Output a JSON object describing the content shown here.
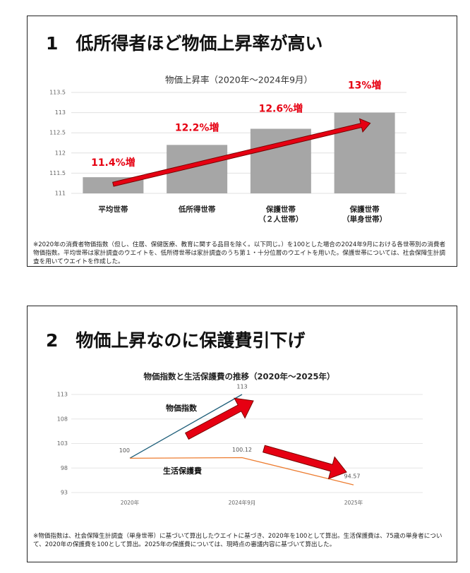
{
  "chart_data": [
    {
      "type": "bar",
      "heading": "1　低所得者ほど物価上昇率が高い",
      "title": "物価上昇率（2020年～2024年9月）",
      "categories": [
        "平均世帯",
        "低所得世帯",
        "保護世帯\n（２人世帯）",
        "保護世帯\n（単身世帯）"
      ],
      "values": [
        111.4,
        112.2,
        112.6,
        113
      ],
      "color": "#a6a6a6",
      "annotations": [
        "11.4%増",
        "12.2%増",
        "12.6%増",
        "13%増"
      ],
      "annotation_color": "#e60012",
      "ylim": [
        111,
        113.5
      ],
      "yticks": [
        111,
        111.5,
        112,
        112.5,
        113,
        113.5
      ],
      "grid": true,
      "note": "※2020年の消費者物価指数（但し、住居、保健医療、教育に関する品目を除く。以下同じ。）を100とした場合の2024年9月における各世帯別の消費者物価指数。平均世帯は家計調査のウエイトを、低所得世帯は家計調査のうち第１・十分位層のウエイトを用いた。保護世帯については、社会保障生計調査を用いてウエイトを作成した。"
    },
    {
      "type": "line",
      "heading": "2　物価上昇なのに保護費引下げ",
      "title": "物価指数と生活保護費の推移（2020年～2025年）",
      "categories": [
        "2020年",
        "2024年9月",
        "2025年"
      ],
      "series": [
        {
          "name": "物価指数",
          "color": "#1f5f7a",
          "values": [
            100,
            113,
            null
          ],
          "value_labels": [
            "100",
            "113",
            null
          ]
        },
        {
          "name": "生活保護費",
          "color": "#ed7d31",
          "values": [
            100,
            100.12,
            94.57
          ],
          "value_labels": [
            null,
            "100.12",
            "94.57"
          ]
        }
      ],
      "ylim": [
        93,
        113
      ],
      "yticks": [
        93,
        98,
        103,
        108,
        113
      ],
      "grid": true,
      "note": "※物価指数は、社会保障生計調査（単身世帯）に基づいて算出したウエイトに基づき、2020年を100として算出。生活保護費は、75歳の単身者について、2020年の保護費を100として算出。2025年の保護費については、現時点の審議内容に基づいて算出した。"
    }
  ]
}
